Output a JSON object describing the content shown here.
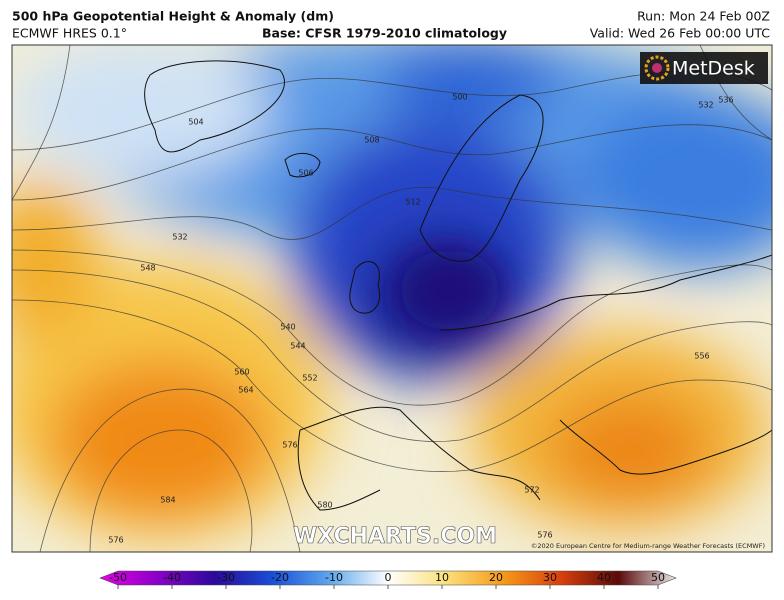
{
  "header": {
    "title": "500 hPa Geopotential Height & Anomaly (dm)",
    "model": "ECMWF HRES 0.1°",
    "base": "Base: CFSR 1979-2010 climatology",
    "run": "Run: Mon 24 Feb 00Z",
    "valid": "Valid: Wed 26 Feb 00:00 UTC"
  },
  "logo": "MetDesk",
  "watermark": "WXCHARTS.COM",
  "copyright": "©2020 European Centre for Medium-range Weather Forecasts (ECMWF)",
  "contour_labels": [
    "504",
    "500",
    "508",
    "506",
    "512",
    "532",
    "548",
    "540",
    "544",
    "552",
    "560",
    "564",
    "576",
    "580",
    "584",
    "576",
    "572",
    "576",
    "556",
    "532",
    "536"
  ],
  "colorbar": {
    "ticks": [
      -50,
      -40,
      -30,
      -20,
      -10,
      0,
      10,
      20,
      30,
      40,
      50
    ]
  }
}
